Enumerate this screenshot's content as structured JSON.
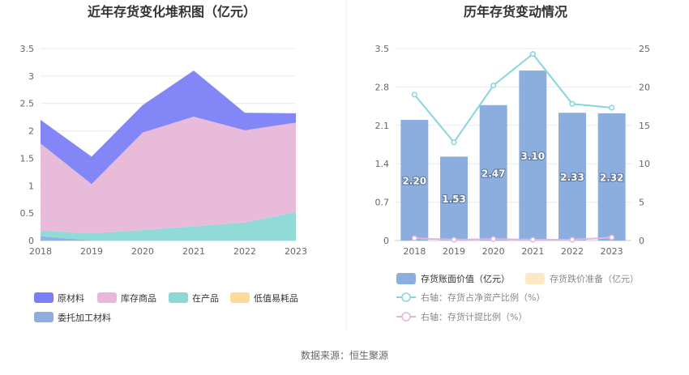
{
  "colors": {
    "raw_material": "#7b7ff5",
    "finished_goods": "#e8b7d8",
    "wip": "#8bd8d6",
    "low_value": "#ffd99a",
    "consigned": "#8caedf",
    "book_value": "#8caedf",
    "impairment": "#fde7c4",
    "ratio_net_assets": "#84d6dc",
    "provision_ratio": "#e3b4dc"
  },
  "chart_data": [
    {
      "type": "area",
      "stacked": true,
      "title": "近年存货变化堆积图（亿元）",
      "x": [
        "2018",
        "2019",
        "2020",
        "2021",
        "2022",
        "2023"
      ],
      "ylim": [
        0,
        3.5
      ],
      "yticks": [
        "0",
        "0.5",
        "1",
        "1.5",
        "2",
        "2.5",
        "3",
        "3.5"
      ],
      "grid": true,
      "legend_position": "bottom",
      "series": [
        {
          "name": "委托加工材料",
          "color_key": "consigned",
          "values": [
            0.08,
            0.0,
            0.0,
            0.0,
            0.0,
            0.0
          ]
        },
        {
          "name": "低值易耗品",
          "color_key": "low_value",
          "values": [
            0.0,
            0.0,
            0.0,
            0.0,
            0.0,
            0.0
          ]
        },
        {
          "name": "在产品",
          "color_key": "wip",
          "values": [
            0.1,
            0.13,
            0.19,
            0.26,
            0.33,
            0.52
          ]
        },
        {
          "name": "库存商品",
          "color_key": "finished_goods",
          "values": [
            1.59,
            0.9,
            1.78,
            2.0,
            1.68,
            1.63
          ]
        },
        {
          "name": "原材料",
          "color_key": "raw_material",
          "values": [
            0.43,
            0.5,
            0.5,
            0.84,
            0.32,
            0.17
          ]
        }
      ],
      "legend_order": [
        "原材料",
        "库存商品",
        "在产品",
        "低值易耗品",
        "委托加工材料"
      ]
    },
    {
      "type": "bar",
      "title": "历年存货变动情况",
      "categories": [
        "2018",
        "2019",
        "2020",
        "2021",
        "2022",
        "2023"
      ],
      "ylim_left": [
        0,
        3.5
      ],
      "yticks_left": [
        "0",
        "0.7",
        "1.4",
        "2.1",
        "2.8",
        "3.5"
      ],
      "ylim_right": [
        0,
        25
      ],
      "yticks_right": [
        "0",
        "5",
        "10",
        "15",
        "20",
        "25"
      ],
      "grid": true,
      "legend_position": "bottom",
      "series": [
        {
          "name": "存货账面价值（亿元）",
          "kind": "bar",
          "axis": "left",
          "values": [
            2.2,
            1.53,
            2.47,
            3.1,
            2.33,
            2.32
          ],
          "labels": [
            "2.20",
            "1.53",
            "2.47",
            "3.10",
            "2.33",
            "2.32"
          ]
        },
        {
          "name": "存货跌价准备（亿元）",
          "kind": "bar",
          "axis": "left",
          "values": [
            0,
            0,
            0,
            0,
            0,
            0
          ]
        },
        {
          "name": "右轴：存货占净资产比例（%）",
          "kind": "line",
          "axis": "right",
          "values": [
            19.0,
            12.8,
            20.2,
            24.3,
            17.8,
            17.3
          ]
        },
        {
          "name": "右轴：存货计提比例（%）",
          "kind": "line",
          "axis": "right",
          "values": [
            0.3,
            0.1,
            0.2,
            0.1,
            0.1,
            0.4
          ]
        }
      ]
    }
  ],
  "footer": {
    "source": "数据来源：恒生聚源"
  }
}
